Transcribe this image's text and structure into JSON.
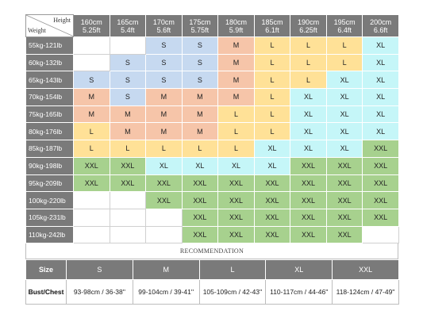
{
  "header": {
    "height_label": "Height",
    "weight_label": "Weight",
    "columns": [
      {
        "cm": "160cm",
        "ft": "5.25ft"
      },
      {
        "cm": "165cm",
        "ft": "5.4ft"
      },
      {
        "cm": "170cm",
        "ft": "5.6ft"
      },
      {
        "cm": "175cm",
        "ft": "5.75ft"
      },
      {
        "cm": "180cm",
        "ft": "5.9ft"
      },
      {
        "cm": "185cm",
        "ft": "6.1ft"
      },
      {
        "cm": "190cm",
        "ft": "6.25ft"
      },
      {
        "cm": "195cm",
        "ft": "6.4ft"
      },
      {
        "cm": "200cm",
        "ft": "6.6ft"
      }
    ]
  },
  "rows": [
    {
      "weight": "55kg-121lb",
      "sizes": [
        "",
        "",
        "S",
        "S",
        "M",
        "L",
        "L",
        "L",
        "XL"
      ]
    },
    {
      "weight": "60kg-132lb",
      "sizes": [
        "",
        "S",
        "S",
        "S",
        "M",
        "L",
        "L",
        "L",
        "XL"
      ]
    },
    {
      "weight": "65kg-143lb",
      "sizes": [
        "S",
        "S",
        "S",
        "S",
        "M",
        "L",
        "L",
        "XL",
        "XL"
      ]
    },
    {
      "weight": "70kg-154lb",
      "sizes": [
        "M",
        "S",
        "M",
        "M",
        "M",
        "L",
        "XL",
        "XL",
        "XL"
      ]
    },
    {
      "weight": "75kg-165lb",
      "sizes": [
        "M",
        "M",
        "M",
        "M",
        "L",
        "L",
        "XL",
        "XL",
        "XL"
      ]
    },
    {
      "weight": "80kg-176lb",
      "sizes": [
        "L",
        "M",
        "M",
        "M",
        "L",
        "L",
        "XL",
        "XL",
        "XL"
      ]
    },
    {
      "weight": "85kg-187lb",
      "sizes": [
        "L",
        "L",
        "L",
        "L",
        "L",
        "XL",
        "XL",
        "XL",
        "XXL"
      ]
    },
    {
      "weight": "90kg-198lb",
      "sizes": [
        "XXL",
        "XXL",
        "XL",
        "XL",
        "XL",
        "XL",
        "XXL",
        "XXL",
        "XXL"
      ]
    },
    {
      "weight": "95kg-209lb",
      "sizes": [
        "XXL",
        "XXL",
        "XXL",
        "XXL",
        "XXL",
        "XXL",
        "XXL",
        "XXL",
        "XXL"
      ]
    },
    {
      "weight": "100kg-220lb",
      "sizes": [
        "",
        "",
        "XXL",
        "XXL",
        "XXL",
        "XXL",
        "XXL",
        "XXL",
        "XXL"
      ]
    },
    {
      "weight": "105kg-231lb",
      "sizes": [
        "",
        "",
        "",
        "XXL",
        "XXL",
        "XXL",
        "XXL",
        "XXL",
        "XXL"
      ]
    },
    {
      "weight": "110kg-242lb",
      "sizes": [
        "",
        "",
        "",
        "XXL",
        "XXL",
        "XXL",
        "XXL",
        "XXL",
        ""
      ]
    }
  ],
  "recommendation_label": "RECOMMENDATION",
  "bust": {
    "size_label": "Size",
    "chest_label": "Bust/Chest",
    "items": [
      {
        "size": "S",
        "range": "93-98cm / 36-38''"
      },
      {
        "size": "M",
        "range": "99-104cm / 39-41''"
      },
      {
        "size": "L",
        "range": "105-109cm / 42-43''"
      },
      {
        "size": "XL",
        "range": "110-117cm / 44-46''"
      },
      {
        "size": "XXL",
        "range": "118-124cm / 47-49''"
      }
    ]
  },
  "colors": {
    "S": "#c6d9f0",
    "M": "#f6c5a9",
    "L": "#ffe197",
    "XL": "#c5f6f8",
    "XXL": "#a7d18e",
    "header": "#7a7a7a"
  }
}
